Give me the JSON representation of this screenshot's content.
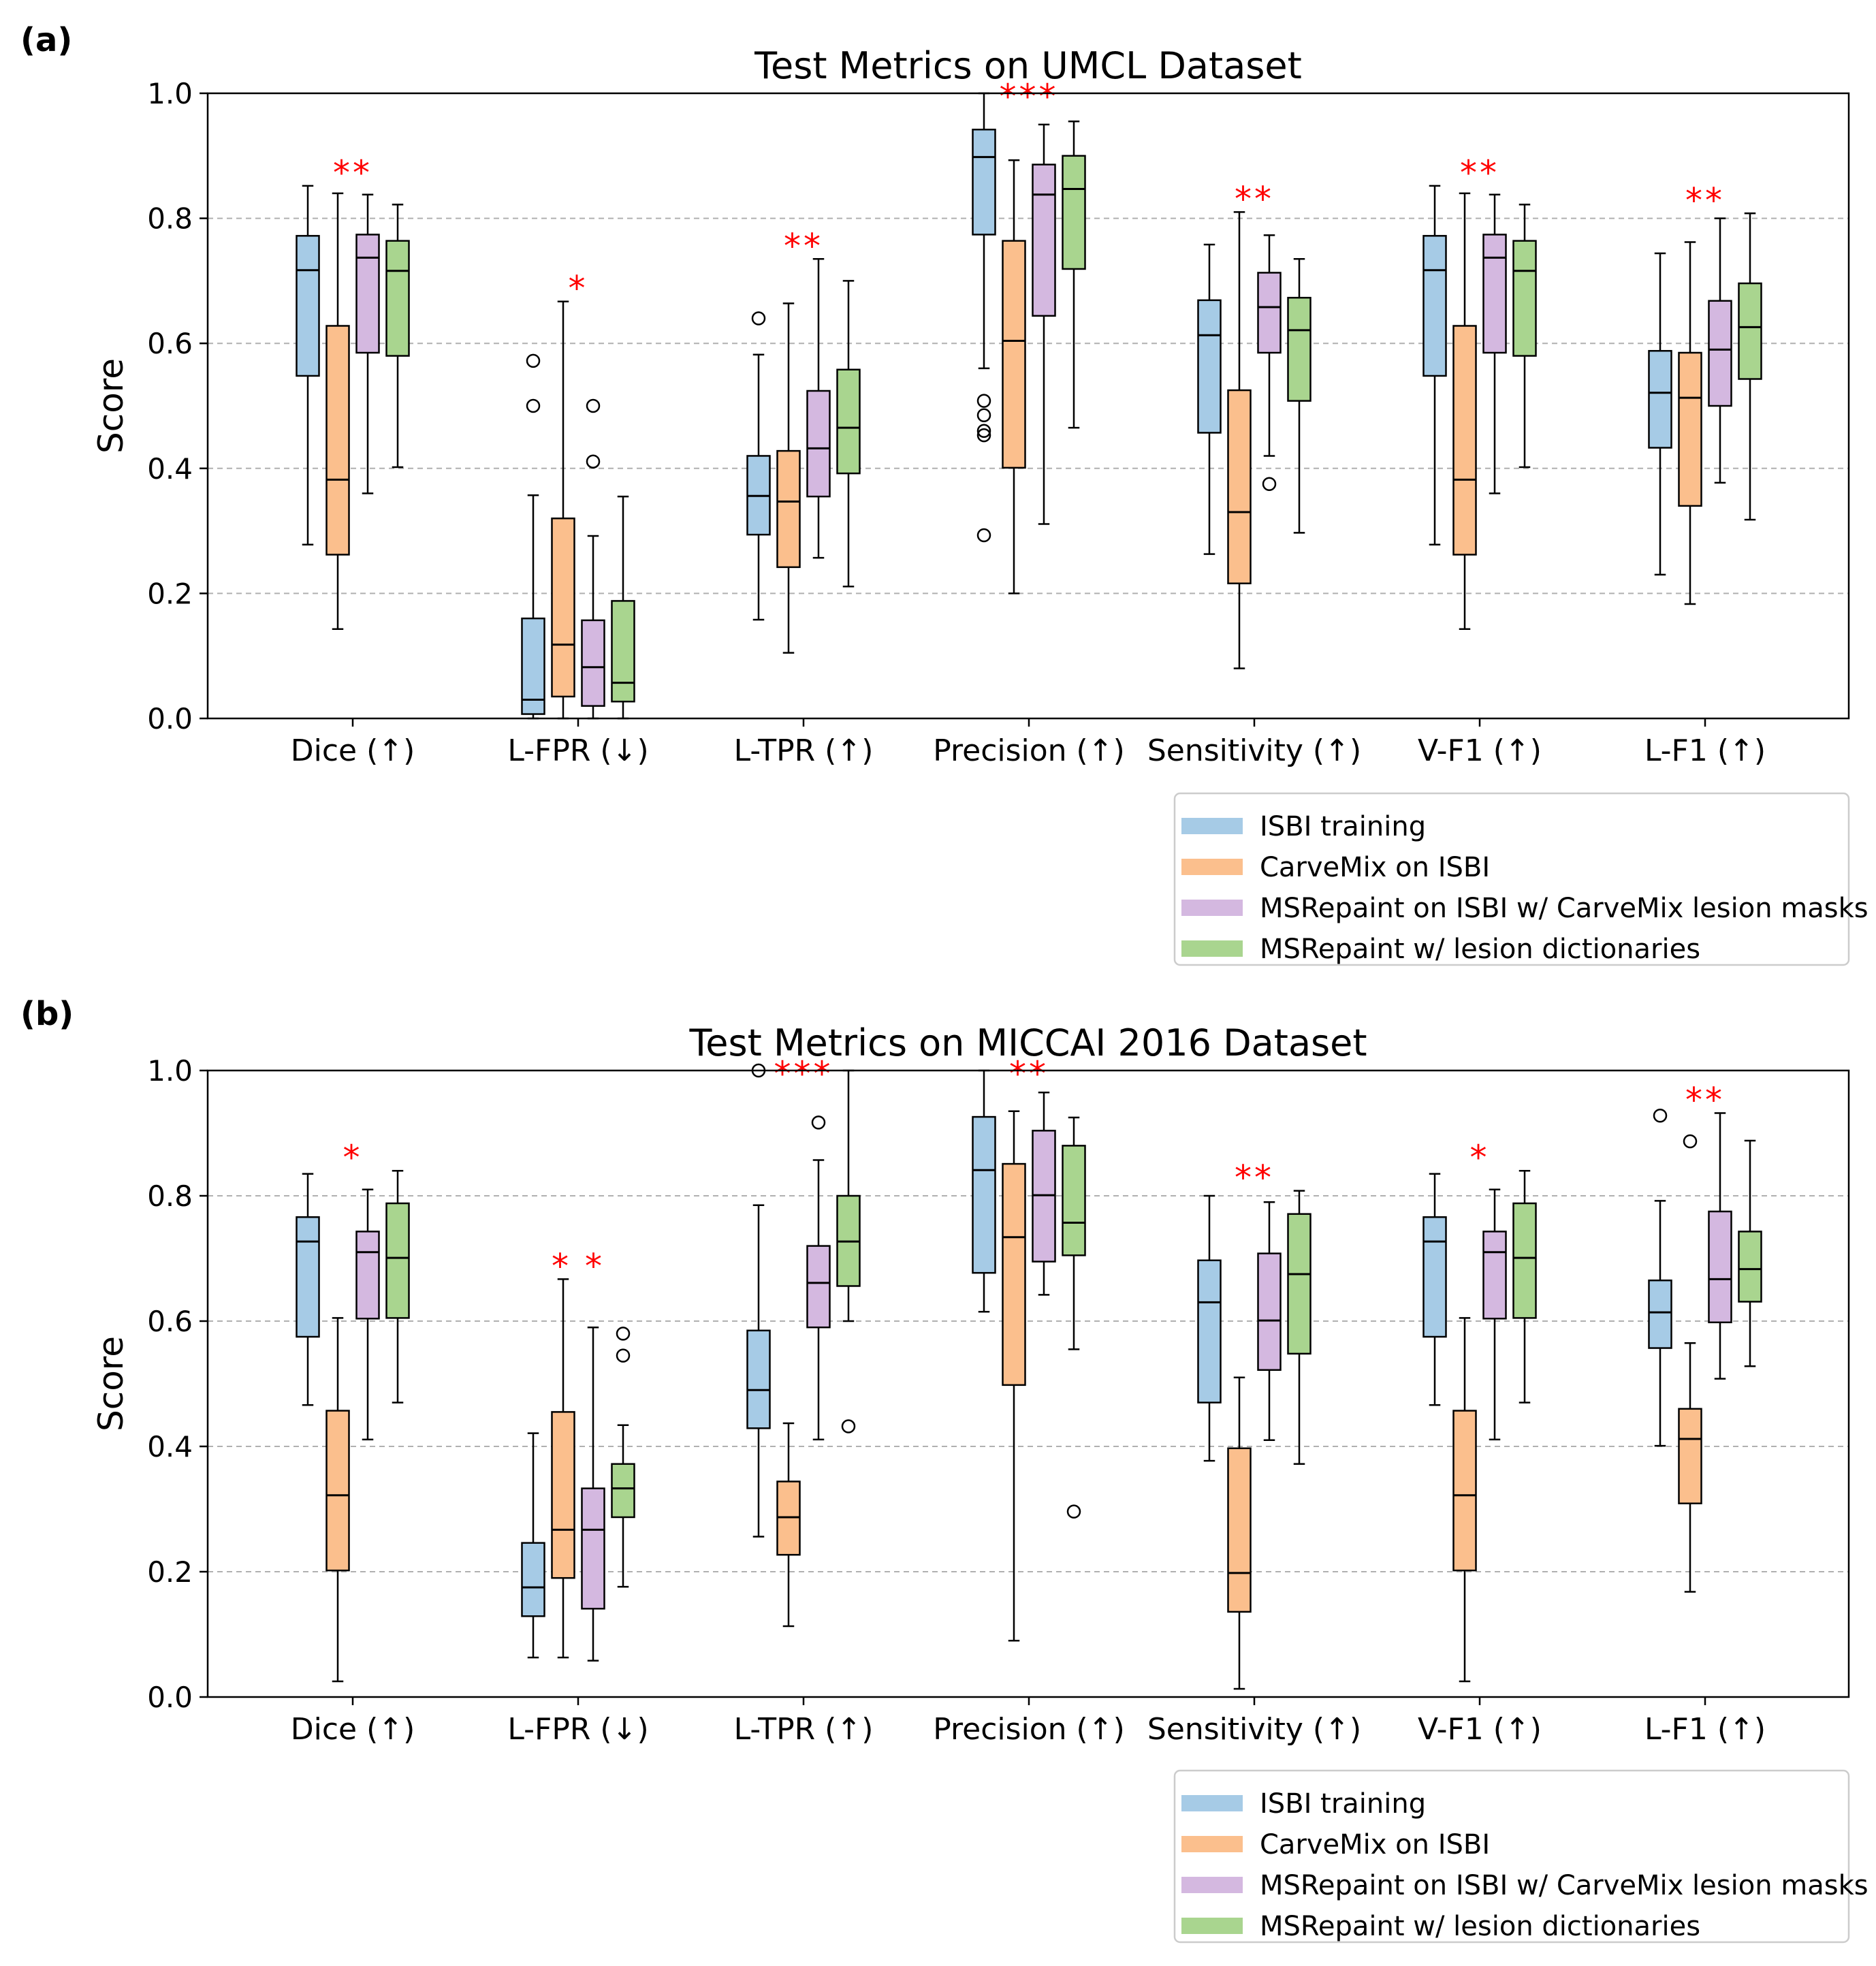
{
  "figure": {
    "panels": [
      "(a)",
      "(b)"
    ]
  },
  "legend": [
    {
      "label": "ISBI training",
      "color": "#a6cbe6"
    },
    {
      "label": "CarveMix on ISBI",
      "color": "#fbbf8d"
    },
    {
      "label": "MSRepaint on ISBI w/ CarveMix lesion masks",
      "color": "#d4b8e0"
    },
    {
      "label": "MSRepaint w/ lesion dictionaries",
      "color": "#a9d58f"
    }
  ],
  "colors": {
    "edge": "#000000",
    "grid": "#b0b0b0",
    "star": "#ff0000"
  },
  "chart_data": [
    {
      "type": "boxplot",
      "panel": "(a)",
      "title": "Test Metrics on UMCL Dataset",
      "ylabel": "Score",
      "xlabel": "",
      "ylim": [
        0,
        1
      ],
      "yticks": [
        "0.0",
        "0.2",
        "0.4",
        "0.6",
        "0.8",
        "1.0"
      ],
      "grid": "y-dashed",
      "legend_position": "bottom-right",
      "categories": [
        "Dice (↑)",
        "L-FPR (↓)",
        "L-TPR (↑)",
        "Precision (↑)",
        "Sensitivity (↑)",
        "V-F1 (↑)",
        "L-F1 (↑)"
      ],
      "series_names": [
        "ISBI training",
        "CarveMix on ISBI",
        "MSRepaint on ISBI w/ CarveMix lesion masks",
        "MSRepaint w/ lesion dictionaries"
      ],
      "groups": [
        {
          "stars": "**",
          "boxes": [
            {
              "q1": 0.548,
              "med": 0.717,
              "q3": 0.772,
              "lo": 0.278,
              "hi": 0.852,
              "outliers": []
            },
            {
              "q1": 0.262,
              "med": 0.382,
              "q3": 0.628,
              "lo": 0.143,
              "hi": 0.84,
              "outliers": []
            },
            {
              "q1": 0.585,
              "med": 0.737,
              "q3": 0.774,
              "lo": 0.36,
              "hi": 0.838,
              "outliers": []
            },
            {
              "q1": 0.58,
              "med": 0.716,
              "q3": 0.764,
              "lo": 0.402,
              "hi": 0.822,
              "outliers": []
            }
          ]
        },
        {
          "stars": "*",
          "boxes": [
            {
              "q1": 0.007,
              "med": 0.03,
              "q3": 0.16,
              "lo": 0.0,
              "hi": 0.357,
              "outliers": [
                0.5,
                0.572
              ]
            },
            {
              "q1": 0.035,
              "med": 0.118,
              "q3": 0.32,
              "lo": 0.0,
              "hi": 0.667,
              "outliers": []
            },
            {
              "q1": 0.02,
              "med": 0.082,
              "q3": 0.157,
              "lo": 0.0,
              "hi": 0.292,
              "outliers": [
                0.411,
                0.5
              ]
            },
            {
              "q1": 0.027,
              "med": 0.057,
              "q3": 0.188,
              "lo": 0.0,
              "hi": 0.355,
              "outliers": []
            }
          ]
        },
        {
          "stars": "**",
          "boxes": [
            {
              "q1": 0.294,
              "med": 0.356,
              "q3": 0.42,
              "lo": 0.158,
              "hi": 0.582,
              "outliers": [
                0.64
              ]
            },
            {
              "q1": 0.242,
              "med": 0.347,
              "q3": 0.428,
              "lo": 0.105,
              "hi": 0.664,
              "outliers": []
            },
            {
              "q1": 0.355,
              "med": 0.432,
              "q3": 0.524,
              "lo": 0.257,
              "hi": 0.735,
              "outliers": []
            },
            {
              "q1": 0.392,
              "med": 0.465,
              "q3": 0.558,
              "lo": 0.211,
              "hi": 0.7,
              "outliers": []
            }
          ]
        },
        {
          "stars": "***",
          "boxes": [
            {
              "q1": 0.774,
              "med": 0.898,
              "q3": 0.942,
              "lo": 0.56,
              "hi": 1.0,
              "outliers": [
                0.293,
                0.453,
                0.46,
                0.485,
                0.508
              ]
            },
            {
              "q1": 0.401,
              "med": 0.604,
              "q3": 0.764,
              "lo": 0.2,
              "hi": 0.893,
              "outliers": []
            },
            {
              "q1": 0.644,
              "med": 0.838,
              "q3": 0.886,
              "lo": 0.311,
              "hi": 0.95,
              "outliers": []
            },
            {
              "q1": 0.719,
              "med": 0.847,
              "q3": 0.9,
              "lo": 0.465,
              "hi": 0.955,
              "outliers": []
            }
          ]
        },
        {
          "stars": "**",
          "boxes": [
            {
              "q1": 0.457,
              "med": 0.613,
              "q3": 0.669,
              "lo": 0.263,
              "hi": 0.758,
              "outliers": []
            },
            {
              "q1": 0.216,
              "med": 0.33,
              "q3": 0.525,
              "lo": 0.08,
              "hi": 0.81,
              "outliers": []
            },
            {
              "q1": 0.585,
              "med": 0.658,
              "q3": 0.713,
              "lo": 0.42,
              "hi": 0.773,
              "outliers": [
                0.375
              ]
            },
            {
              "q1": 0.508,
              "med": 0.621,
              "q3": 0.673,
              "lo": 0.297,
              "hi": 0.735,
              "outliers": []
            }
          ]
        },
        {
          "stars": "**",
          "boxes": [
            {
              "q1": 0.548,
              "med": 0.717,
              "q3": 0.772,
              "lo": 0.278,
              "hi": 0.852,
              "outliers": []
            },
            {
              "q1": 0.262,
              "med": 0.382,
              "q3": 0.628,
              "lo": 0.143,
              "hi": 0.84,
              "outliers": []
            },
            {
              "q1": 0.585,
              "med": 0.737,
              "q3": 0.774,
              "lo": 0.36,
              "hi": 0.838,
              "outliers": []
            },
            {
              "q1": 0.58,
              "med": 0.716,
              "q3": 0.764,
              "lo": 0.402,
              "hi": 0.822,
              "outliers": []
            }
          ]
        },
        {
          "stars": "**",
          "boxes": [
            {
              "q1": 0.433,
              "med": 0.521,
              "q3": 0.588,
              "lo": 0.23,
              "hi": 0.744,
              "outliers": []
            },
            {
              "q1": 0.34,
              "med": 0.513,
              "q3": 0.585,
              "lo": 0.183,
              "hi": 0.762,
              "outliers": []
            },
            {
              "q1": 0.5,
              "med": 0.59,
              "q3": 0.668,
              "lo": 0.377,
              "hi": 0.8,
              "outliers": []
            },
            {
              "q1": 0.543,
              "med": 0.626,
              "q3": 0.696,
              "lo": 0.318,
              "hi": 0.808,
              "outliers": []
            }
          ]
        }
      ]
    },
    {
      "type": "boxplot",
      "panel": "(b)",
      "title": "Test Metrics on MICCAI 2016 Dataset",
      "ylabel": "Score",
      "xlabel": "",
      "ylim": [
        0,
        1
      ],
      "yticks": [
        "0.0",
        "0.2",
        "0.4",
        "0.6",
        "0.8",
        "1.0"
      ],
      "grid": "y-dashed",
      "legend_position": "bottom-right",
      "categories": [
        "Dice (↑)",
        "L-FPR (↓)",
        "L-TPR (↑)",
        "Precision (↑)",
        "Sensitivity (↑)",
        "V-F1 (↑)",
        "L-F1 (↑)"
      ],
      "series_names": [
        "ISBI training",
        "CarveMix on ISBI",
        "MSRepaint on ISBI w/ CarveMix lesion masks",
        "MSRepaint w/ lesion dictionaries"
      ],
      "groups": [
        {
          "stars": "*",
          "boxes": [
            {
              "q1": 0.575,
              "med": 0.727,
              "q3": 0.766,
              "lo": 0.466,
              "hi": 0.835,
              "outliers": []
            },
            {
              "q1": 0.202,
              "med": 0.322,
              "q3": 0.457,
              "lo": 0.025,
              "hi": 0.605,
              "outliers": []
            },
            {
              "q1": 0.604,
              "med": 0.71,
              "q3": 0.743,
              "lo": 0.411,
              "hi": 0.81,
              "outliers": []
            },
            {
              "q1": 0.605,
              "med": 0.701,
              "q3": 0.788,
              "lo": 0.47,
              "hi": 0.84,
              "outliers": []
            }
          ]
        },
        {
          "stars": "* *",
          "boxes": [
            {
              "q1": 0.129,
              "med": 0.175,
              "q3": 0.246,
              "lo": 0.063,
              "hi": 0.421,
              "outliers": []
            },
            {
              "q1": 0.19,
              "med": 0.267,
              "q3": 0.455,
              "lo": 0.063,
              "hi": 0.667,
              "outliers": []
            },
            {
              "q1": 0.141,
              "med": 0.267,
              "q3": 0.333,
              "lo": 0.058,
              "hi": 0.59,
              "outliers": []
            },
            {
              "q1": 0.287,
              "med": 0.333,
              "q3": 0.372,
              "lo": 0.176,
              "hi": 0.434,
              "outliers": [
                0.545,
                0.58
              ]
            }
          ]
        },
        {
          "stars": "***",
          "boxes": [
            {
              "q1": 0.429,
              "med": 0.49,
              "q3": 0.585,
              "lo": 0.256,
              "hi": 0.785,
              "outliers": [
                1.0
              ]
            },
            {
              "q1": 0.227,
              "med": 0.287,
              "q3": 0.344,
              "lo": 0.113,
              "hi": 0.437,
              "outliers": []
            },
            {
              "q1": 0.59,
              "med": 0.661,
              "q3": 0.72,
              "lo": 0.411,
              "hi": 0.857,
              "outliers": [
                0.917
              ]
            },
            {
              "q1": 0.656,
              "med": 0.727,
              "q3": 0.8,
              "lo": 0.6,
              "hi": 1.0,
              "outliers": [
                0.432
              ]
            }
          ]
        },
        {
          "stars": "**",
          "boxes": [
            {
              "q1": 0.677,
              "med": 0.841,
              "q3": 0.926,
              "lo": 0.615,
              "hi": 1.0,
              "outliers": []
            },
            {
              "q1": 0.498,
              "med": 0.734,
              "q3": 0.851,
              "lo": 0.09,
              "hi": 0.935,
              "outliers": []
            },
            {
              "q1": 0.695,
              "med": 0.801,
              "q3": 0.904,
              "lo": 0.642,
              "hi": 0.965,
              "outliers": []
            },
            {
              "q1": 0.705,
              "med": 0.757,
              "q3": 0.88,
              "lo": 0.555,
              "hi": 0.925,
              "outliers": [
                0.296
              ]
            }
          ]
        },
        {
          "stars": "**",
          "boxes": [
            {
              "q1": 0.47,
              "med": 0.63,
              "q3": 0.697,
              "lo": 0.377,
              "hi": 0.8,
              "outliers": []
            },
            {
              "q1": 0.136,
              "med": 0.198,
              "q3": 0.397,
              "lo": 0.013,
              "hi": 0.51,
              "outliers": []
            },
            {
              "q1": 0.522,
              "med": 0.601,
              "q3": 0.708,
              "lo": 0.41,
              "hi": 0.79,
              "outliers": []
            },
            {
              "q1": 0.548,
              "med": 0.675,
              "q3": 0.771,
              "lo": 0.372,
              "hi": 0.808,
              "outliers": []
            }
          ]
        },
        {
          "stars": "*",
          "boxes": [
            {
              "q1": 0.575,
              "med": 0.727,
              "q3": 0.766,
              "lo": 0.466,
              "hi": 0.835,
              "outliers": []
            },
            {
              "q1": 0.202,
              "med": 0.322,
              "q3": 0.457,
              "lo": 0.025,
              "hi": 0.605,
              "outliers": []
            },
            {
              "q1": 0.604,
              "med": 0.71,
              "q3": 0.743,
              "lo": 0.411,
              "hi": 0.81,
              "outliers": []
            },
            {
              "q1": 0.605,
              "med": 0.701,
              "q3": 0.788,
              "lo": 0.47,
              "hi": 0.84,
              "outliers": []
            }
          ]
        },
        {
          "stars": "**",
          "boxes": [
            {
              "q1": 0.557,
              "med": 0.614,
              "q3": 0.665,
              "lo": 0.401,
              "hi": 0.792,
              "outliers": [
                0.928
              ]
            },
            {
              "q1": 0.309,
              "med": 0.412,
              "q3": 0.46,
              "lo": 0.168,
              "hi": 0.565,
              "outliers": [
                0.887
              ]
            },
            {
              "q1": 0.598,
              "med": 0.667,
              "q3": 0.775,
              "lo": 0.508,
              "hi": 0.932,
              "outliers": []
            },
            {
              "q1": 0.631,
              "med": 0.683,
              "q3": 0.743,
              "lo": 0.528,
              "hi": 0.888,
              "outliers": []
            }
          ]
        }
      ]
    }
  ]
}
